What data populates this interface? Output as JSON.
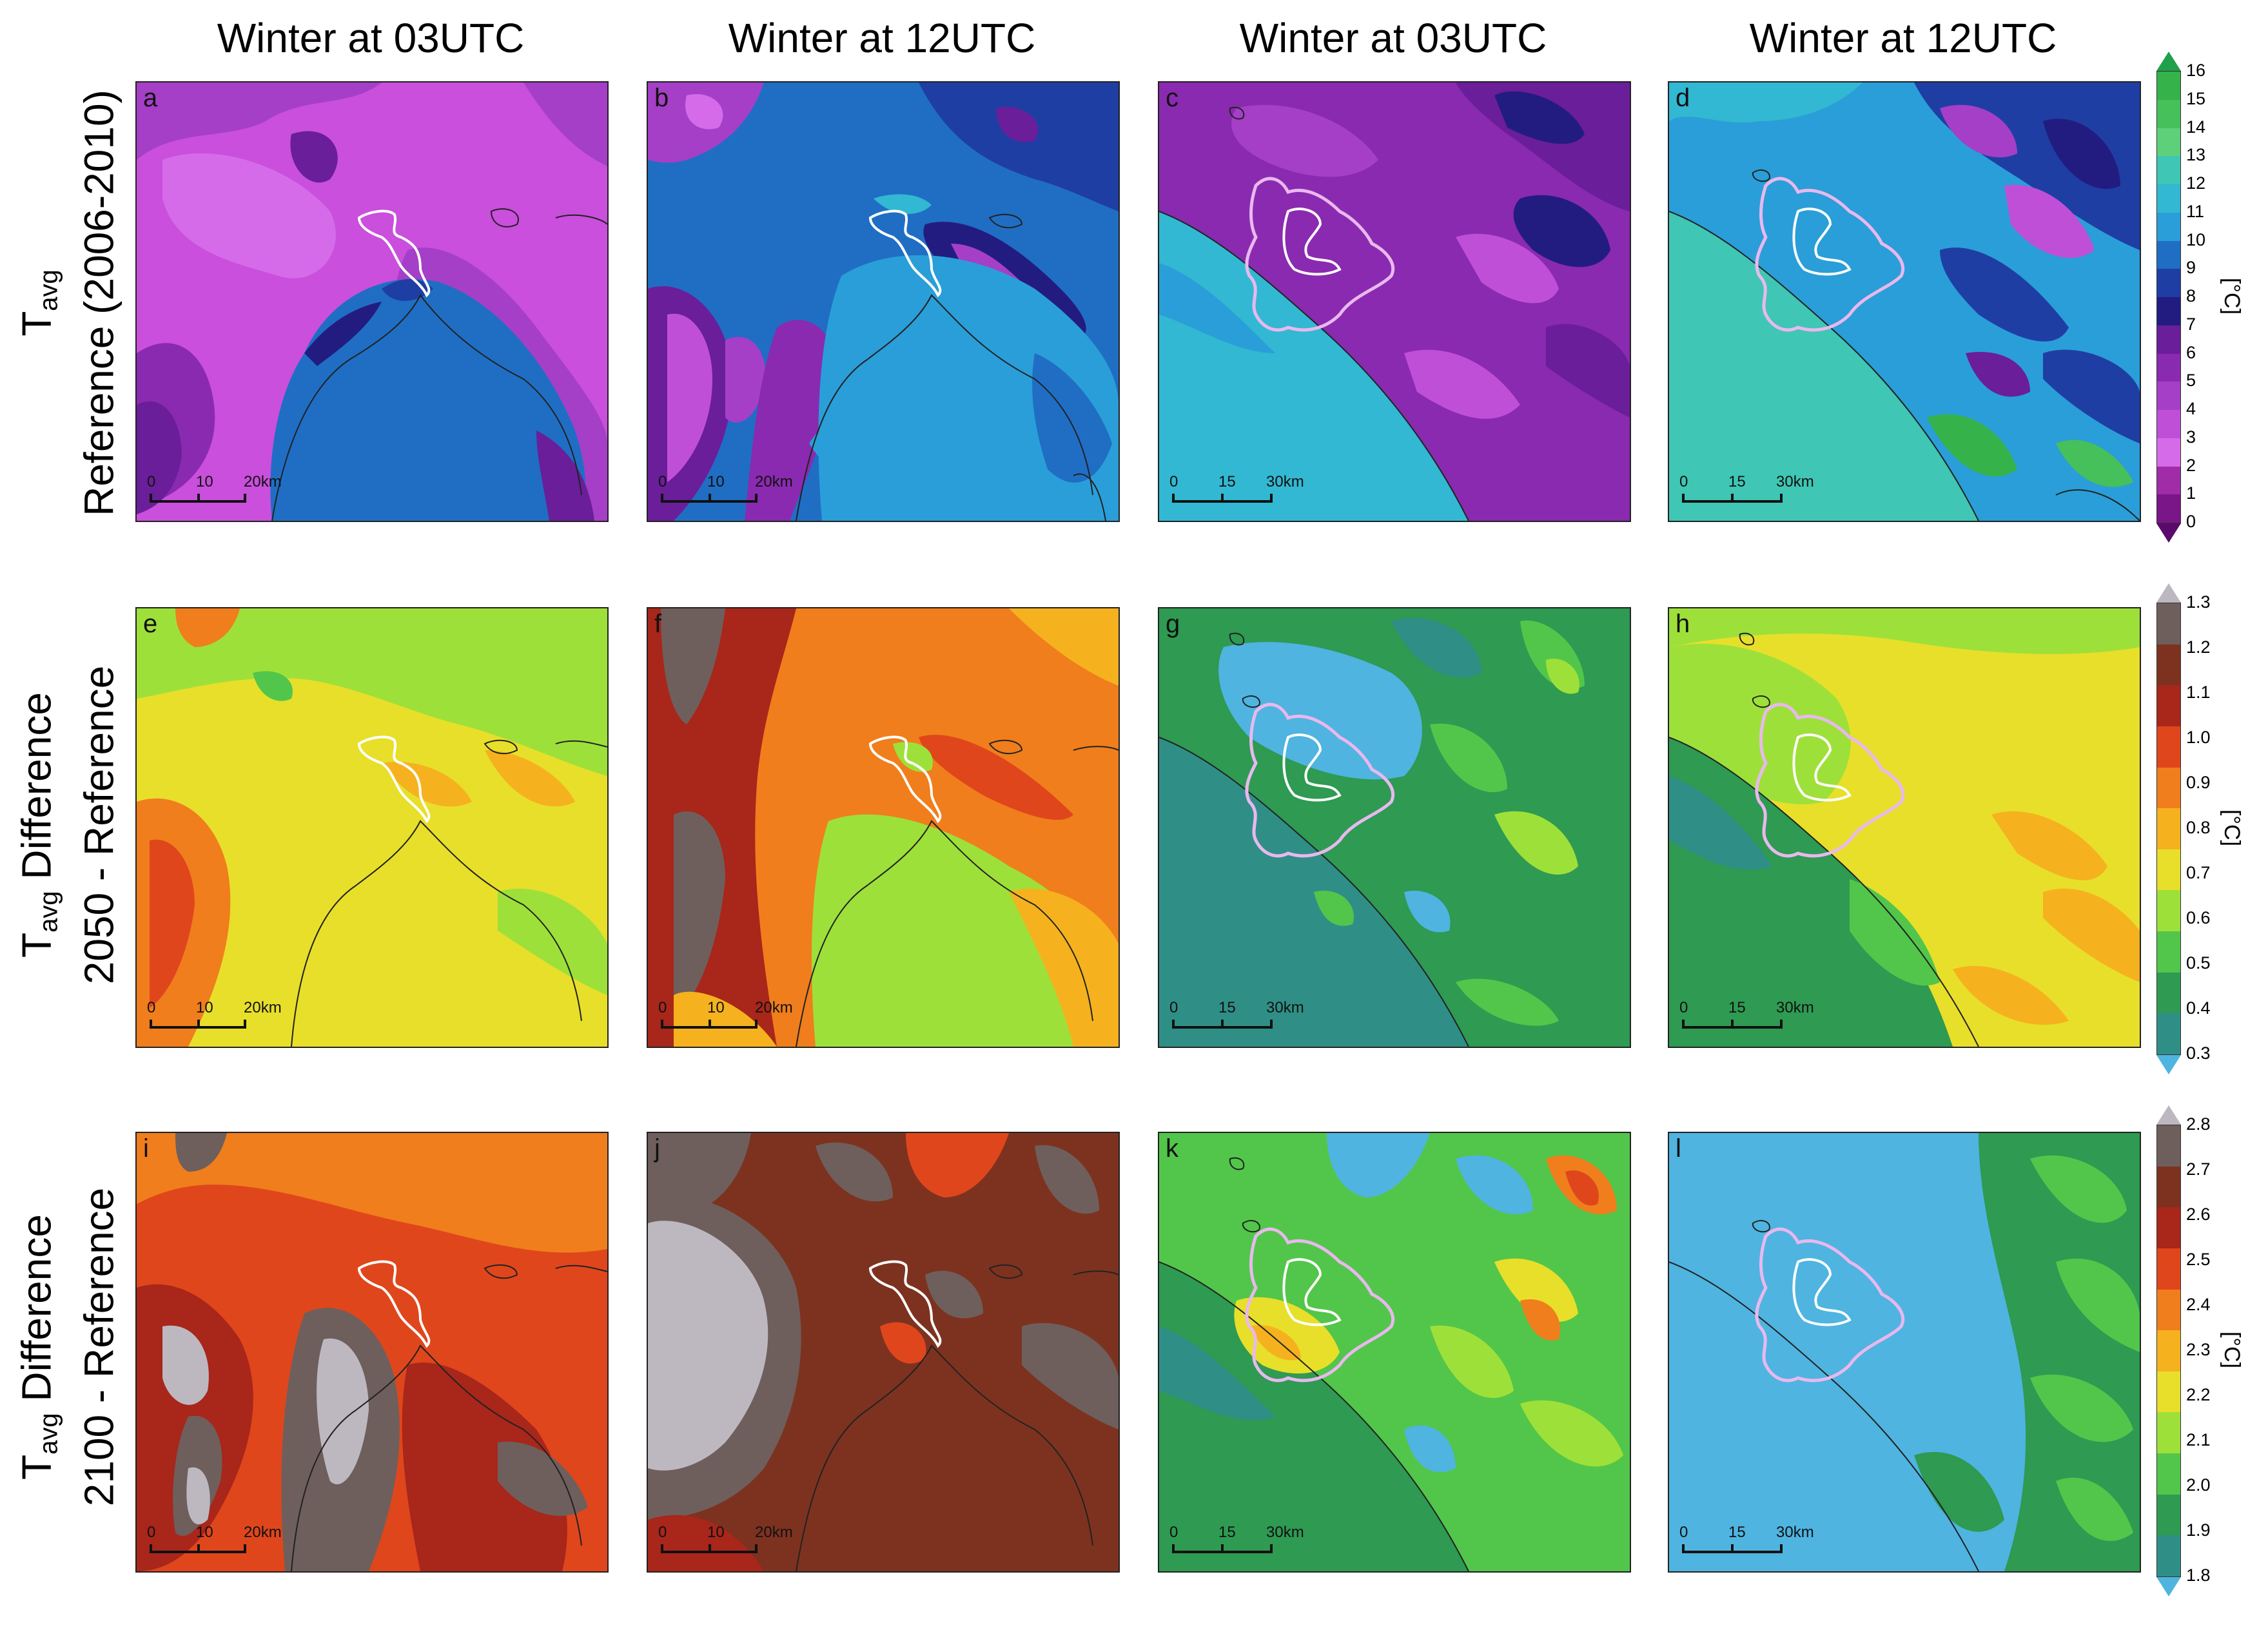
{
  "column_titles": [
    "Winter at 03UTC",
    "Winter at 12UTC",
    "Winter at 03UTC",
    "Winter at 12UTC"
  ],
  "row_labels": [
    {
      "line1_main": "T",
      "line1_sub": "avg",
      "line2": "Reference (2006-2010)"
    },
    {
      "line1_main": "T",
      "line1_sub": "avg",
      "line1_rest": " Difference",
      "line2": "2050 - Reference"
    },
    {
      "line1_main": "T",
      "line1_sub": "avg",
      "line1_rest": " Difference",
      "line2": "2100 - Reference"
    }
  ],
  "panels": [
    {
      "letter": "a",
      "scale": [
        "0",
        "10",
        "20km"
      ]
    },
    {
      "letter": "b",
      "scale": [
        "0",
        "10",
        "20km"
      ]
    },
    {
      "letter": "c",
      "scale": [
        "0",
        "15",
        "30km"
      ]
    },
    {
      "letter": "d",
      "scale": [
        "0",
        "15",
        "30km"
      ]
    },
    {
      "letter": "e",
      "scale": [
        "0",
        "10",
        "20km"
      ]
    },
    {
      "letter": "f",
      "scale": [
        "0",
        "10",
        "20km"
      ]
    },
    {
      "letter": "g",
      "scale": [
        "0",
        "15",
        "30km"
      ]
    },
    {
      "letter": "h",
      "scale": [
        "0",
        "15",
        "30km"
      ]
    },
    {
      "letter": "i",
      "scale": [
        "0",
        "10",
        "20km"
      ]
    },
    {
      "letter": "j",
      "scale": [
        "0",
        "10",
        "20km"
      ]
    },
    {
      "letter": "k",
      "scale": [
        "0",
        "15",
        "30km"
      ]
    },
    {
      "letter": "l",
      "scale": [
        "0",
        "15",
        "30km"
      ]
    }
  ],
  "colorbars": [
    {
      "unit": "[°C]",
      "ticks": [
        "16",
        "15",
        "14",
        "13",
        "12",
        "11",
        "10",
        "9",
        "8",
        "7",
        "6",
        "5",
        "4",
        "3",
        "2",
        "1",
        "0"
      ],
      "colors": [
        "#35b24a",
        "#46c05a",
        "#5fd07a",
        "#3fc6b4",
        "#32b8d2",
        "#2a9ed8",
        "#1f6ec4",
        "#1f3ea4",
        "#231c80",
        "#6a1e9a",
        "#8a2ab0",
        "#a53fc7",
        "#c04fd8",
        "#d56be8",
        "#a02ca8",
        "#7a1688"
      ],
      "top_arrow": "#1fa04a",
      "bottom_arrow": "#5a0a6a"
    },
    {
      "unit": "[°C]",
      "ticks": [
        "1.3",
        "1.2",
        "1.1",
        "1.0",
        "0.9",
        "0.8",
        "0.7",
        "0.6",
        "0.5",
        "0.4",
        "0.3"
      ],
      "colors": [
        "#6e5f5c",
        "#7d3220",
        "#a8261a",
        "#e0461c",
        "#f07e1c",
        "#f5b21e",
        "#e8df2a",
        "#9ee03a",
        "#52c64a",
        "#2e9a52",
        "#2f8f86"
      ],
      "top_arrow": "#bdb8c0",
      "bottom_arrow": "#4fb4e0"
    },
    {
      "unit": "[°C]",
      "ticks": [
        "2.8",
        "2.7",
        "2.6",
        "2.5",
        "2.4",
        "2.3",
        "2.2",
        "2.1",
        "2.0",
        "1.9",
        "1.8"
      ],
      "colors": [
        "#6e5f5c",
        "#7d3220",
        "#a8261a",
        "#e0461c",
        "#f07e1c",
        "#f5b21e",
        "#e8df2a",
        "#9ee03a",
        "#52c64a",
        "#2e9a52",
        "#2f8f86"
      ],
      "top_arrow": "#bdb8c0",
      "bottom_arrow": "#4fb4e0"
    }
  ]
}
